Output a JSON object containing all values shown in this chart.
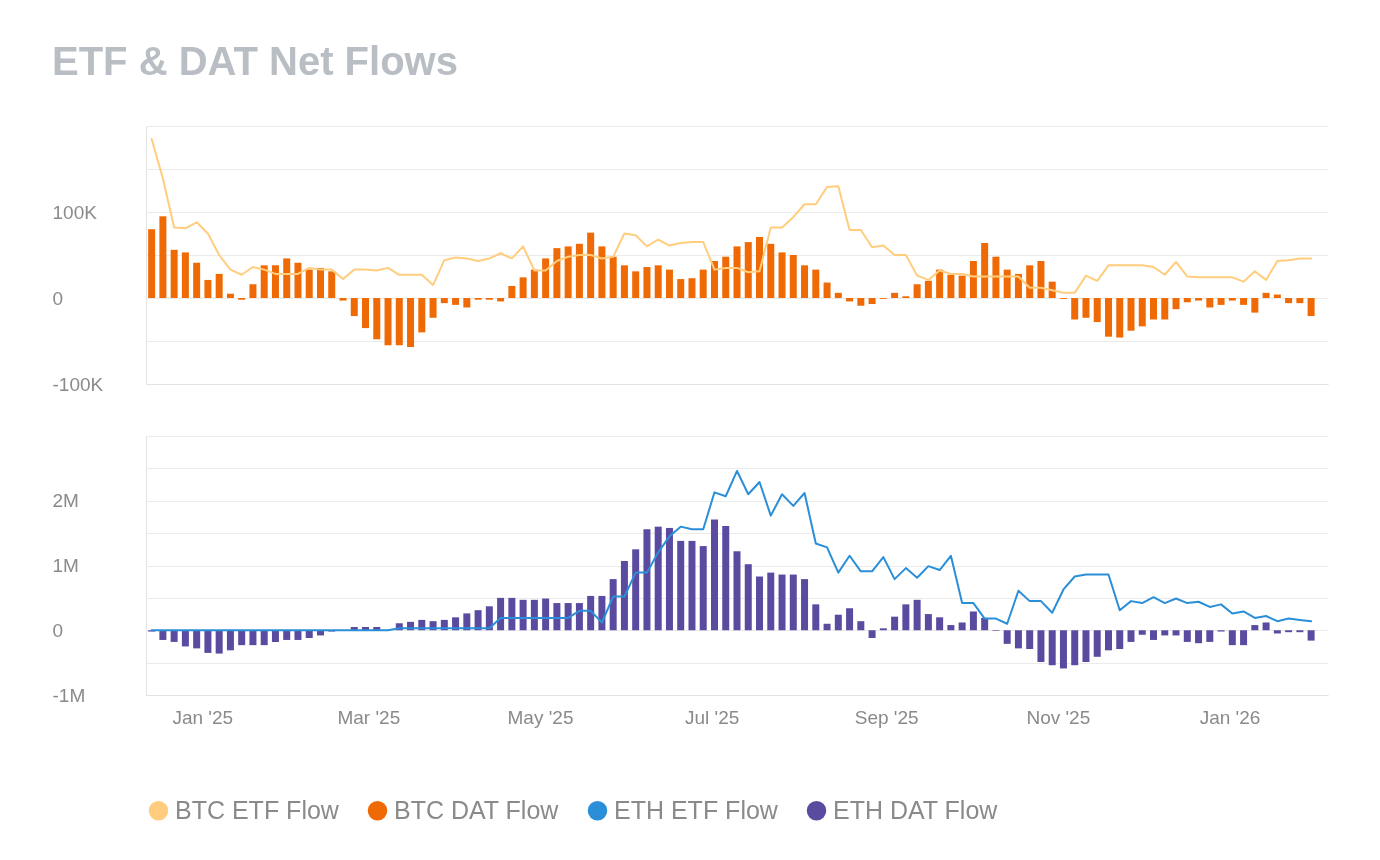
{
  "chart_data": [
    {
      "type": "bar",
      "title": "ETF & DAT Net Flows",
      "x": [
        "2024-12-14",
        "2024-12-18",
        "2024-12-22",
        "2024-12-26",
        "2024-12-30",
        "2025-01-03",
        "2025-01-07",
        "2025-01-11",
        "2025-01-15",
        "2025-01-19",
        "2025-01-23",
        "2025-01-27",
        "2025-01-31",
        "2025-02-04",
        "2025-02-08",
        "2025-02-12",
        "2025-02-16",
        "2025-02-20",
        "2025-02-24",
        "2025-02-28",
        "2025-03-04",
        "2025-03-08",
        "2025-03-12",
        "2025-03-16",
        "2025-03-20",
        "2025-03-24",
        "2025-03-28",
        "2025-04-01",
        "2025-04-05",
        "2025-04-09",
        "2025-04-13",
        "2025-04-17",
        "2025-04-21",
        "2025-04-25",
        "2025-04-29",
        "2025-05-03",
        "2025-05-07",
        "2025-05-11",
        "2025-05-15",
        "2025-05-19",
        "2025-05-23",
        "2025-05-27",
        "2025-05-31",
        "2025-06-04",
        "2025-06-08",
        "2025-06-12",
        "2025-06-16",
        "2025-06-20",
        "2025-06-24",
        "2025-06-28",
        "2025-07-02",
        "2025-07-06",
        "2025-07-10",
        "2025-07-14",
        "2025-07-18",
        "2025-07-22",
        "2025-07-26",
        "2025-07-30",
        "2025-08-03",
        "2025-08-07",
        "2025-08-11",
        "2025-08-15",
        "2025-08-19",
        "2025-08-23",
        "2025-08-27",
        "2025-08-31",
        "2025-09-04",
        "2025-09-08",
        "2025-09-12",
        "2025-09-16",
        "2025-09-20",
        "2025-09-24",
        "2025-09-28",
        "2025-10-02",
        "2025-10-06",
        "2025-10-10",
        "2025-10-14",
        "2025-10-18",
        "2025-10-22",
        "2025-10-26",
        "2025-10-30",
        "2025-11-03",
        "2025-11-07",
        "2025-11-11",
        "2025-11-15",
        "2025-11-19",
        "2025-11-23",
        "2025-11-27",
        "2025-12-01",
        "2025-12-05",
        "2025-12-09",
        "2025-12-13",
        "2025-12-17",
        "2025-12-21",
        "2025-12-25",
        "2025-12-29",
        "2026-01-02",
        "2026-01-06",
        "2026-01-10",
        "2026-01-14",
        "2026-01-18",
        "2026-01-22",
        "2026-01-26",
        "2026-01-30"
      ],
      "series": [
        {
          "name": "BTC ETF Flow",
          "type": "line",
          "color": "#ffcd7d",
          "values": [
            185000,
            139000,
            82000,
            81000,
            88000,
            75000,
            50000,
            33000,
            27000,
            36000,
            33000,
            28000,
            28000,
            28000,
            35000,
            33000,
            33000,
            22000,
            33000,
            33000,
            32000,
            35000,
            27000,
            27000,
            27000,
            15000,
            44000,
            47000,
            46000,
            43000,
            46000,
            52000,
            46000,
            60000,
            32000,
            32000,
            43000,
            48000,
            50000,
            50000,
            46000,
            48000,
            75000,
            73000,
            60000,
            68000,
            61000,
            64000,
            65000,
            65000,
            33000,
            35000,
            35000,
            30000,
            31000,
            82000,
            82000,
            94000,
            109000,
            109000,
            129000,
            130000,
            79000,
            79000,
            59000,
            61000,
            50000,
            50000,
            26000,
            21000,
            32000,
            28000,
            28000,
            25000,
            25000,
            25000,
            25000,
            25000,
            12000,
            12000,
            9000,
            6000,
            6000,
            26000,
            20000,
            38000,
            38000,
            38000,
            38000,
            36000,
            27000,
            42000,
            25000,
            24000,
            24000,
            24000,
            24000,
            19000,
            31000,
            21000,
            43000,
            44000,
            46000,
            46000
          ]
        },
        {
          "name": "BTC DAT Flow",
          "type": "bar",
          "color": "#ef6a04",
          "values": [
            80000,
            95000,
            56000,
            53000,
            41000,
            21000,
            28000,
            5000,
            -2000,
            16000,
            38000,
            38000,
            46000,
            41000,
            33000,
            35000,
            31000,
            -3000,
            -21000,
            -35000,
            -48000,
            -55000,
            -55000,
            -57000,
            -40000,
            -23000,
            -6000,
            -8000,
            -11000,
            -2000,
            -2000,
            -4000,
            14000,
            24000,
            33000,
            46000,
            58000,
            60000,
            63000,
            76000,
            60000,
            48000,
            38000,
            31000,
            36000,
            38000,
            33000,
            22000,
            23000,
            33000,
            43000,
            48000,
            60000,
            65000,
            71000,
            63000,
            53000,
            50000,
            38000,
            33000,
            18000,
            6000,
            -4000,
            -9000,
            -7000,
            -1000,
            6000,
            2000,
            16000,
            20000,
            33000,
            27000,
            26000,
            43000,
            64000,
            48000,
            33000,
            28000,
            38000,
            43000,
            19000,
            -1000,
            -25000,
            -23000,
            -28000,
            -45000,
            -46000,
            -38000,
            -33000,
            -25000,
            -25000,
            -13000,
            -5000,
            -3000,
            -11000,
            -8000,
            -3000,
            -8000,
            -17000,
            6000,
            4000,
            -6000,
            -6000,
            -21000
          ]
        }
      ],
      "xlim": [
        "2024-12-12",
        "2026-02-05"
      ],
      "ylim": [
        -100000,
        200000
      ],
      "yticks": [
        {
          "value": -100000,
          "label": "-100K"
        },
        {
          "value": -50000,
          "label": null
        },
        0,
        {
          "value": 50000,
          "label": null
        },
        {
          "value": 100000,
          "label": "100K"
        },
        {
          "value": 150000,
          "label": null
        },
        {
          "value": 200000,
          "label": null
        }
      ],
      "grid": "y",
      "legend": "bottom",
      "tick_labels": "y"
    },
    {
      "type": "bar",
      "x": [
        "2024-12-14",
        "2024-12-18",
        "2024-12-22",
        "2024-12-26",
        "2024-12-30",
        "2025-01-03",
        "2025-01-07",
        "2025-01-11",
        "2025-01-15",
        "2025-01-19",
        "2025-01-23",
        "2025-01-27",
        "2025-01-31",
        "2025-02-04",
        "2025-02-08",
        "2025-02-12",
        "2025-02-16",
        "2025-02-20",
        "2025-02-24",
        "2025-02-28",
        "2025-03-04",
        "2025-03-08",
        "2025-03-12",
        "2025-03-16",
        "2025-03-20",
        "2025-03-24",
        "2025-03-28",
        "2025-04-01",
        "2025-04-05",
        "2025-04-09",
        "2025-04-13",
        "2025-04-17",
        "2025-04-21",
        "2025-04-25",
        "2025-04-29",
        "2025-05-03",
        "2025-05-07",
        "2025-05-11",
        "2025-05-15",
        "2025-05-19",
        "2025-05-23",
        "2025-05-27",
        "2025-05-31",
        "2025-06-04",
        "2025-06-08",
        "2025-06-12",
        "2025-06-16",
        "2025-06-20",
        "2025-06-24",
        "2025-06-28",
        "2025-07-02",
        "2025-07-06",
        "2025-07-10",
        "2025-07-14",
        "2025-07-18",
        "2025-07-22",
        "2025-07-26",
        "2025-07-30",
        "2025-08-03",
        "2025-08-07",
        "2025-08-11",
        "2025-08-15",
        "2025-08-19",
        "2025-08-23",
        "2025-08-27",
        "2025-08-31",
        "2025-09-04",
        "2025-09-08",
        "2025-09-12",
        "2025-09-16",
        "2025-09-20",
        "2025-09-24",
        "2025-09-28",
        "2025-10-02",
        "2025-10-06",
        "2025-10-10",
        "2025-10-14",
        "2025-10-18",
        "2025-10-22",
        "2025-10-26",
        "2025-10-30",
        "2025-11-03",
        "2025-11-07",
        "2025-11-11",
        "2025-11-15",
        "2025-11-19",
        "2025-11-23",
        "2025-11-27",
        "2025-12-01",
        "2025-12-05",
        "2025-12-09",
        "2025-12-13",
        "2025-12-17",
        "2025-12-21",
        "2025-12-25",
        "2025-12-29",
        "2026-01-02",
        "2026-01-06",
        "2026-01-10",
        "2026-01-14",
        "2026-01-18",
        "2026-01-22",
        "2026-01-26",
        "2026-01-30"
      ],
      "series": [
        {
          "name": "ETH ETF Flow",
          "type": "line",
          "color": "#2a8fd8",
          "values": [
            0,
            0,
            0,
            0,
            0,
            0,
            0,
            0,
            0,
            0,
            0,
            0,
            0,
            0,
            0,
            0,
            0,
            0,
            0,
            0,
            0,
            0,
            30000,
            30000,
            30000,
            30000,
            30000,
            30000,
            30000,
            30000,
            30000,
            190000,
            190000,
            190000,
            190000,
            190000,
            190000,
            190000,
            300000,
            300000,
            120000,
            520000,
            520000,
            890000,
            890000,
            1200000,
            1450000,
            1600000,
            1560000,
            1560000,
            2130000,
            2070000,
            2460000,
            2100000,
            2290000,
            1770000,
            2100000,
            1920000,
            2120000,
            1340000,
            1280000,
            890000,
            1150000,
            910000,
            910000,
            1130000,
            790000,
            960000,
            810000,
            990000,
            930000,
            1150000,
            420000,
            420000,
            180000,
            180000,
            100000,
            610000,
            450000,
            450000,
            270000,
            630000,
            830000,
            860000,
            860000,
            860000,
            310000,
            450000,
            420000,
            510000,
            420000,
            490000,
            420000,
            440000,
            360000,
            400000,
            260000,
            290000,
            190000,
            220000,
            140000,
            180000,
            160000,
            140000
          ]
        },
        {
          "name": "ETH DAT Flow",
          "type": "bar",
          "color": "#5b4ba0",
          "values": [
            -20000,
            -150000,
            -180000,
            -250000,
            -280000,
            -350000,
            -360000,
            -310000,
            -230000,
            -230000,
            -230000,
            -180000,
            -150000,
            -150000,
            -120000,
            -80000,
            -20000,
            null,
            50000,
            50000,
            50000,
            null,
            110000,
            130000,
            160000,
            140000,
            160000,
            200000,
            260000,
            310000,
            370000,
            500000,
            500000,
            470000,
            470000,
            490000,
            420000,
            420000,
            420000,
            530000,
            530000,
            790000,
            1070000,
            1250000,
            1560000,
            1600000,
            1580000,
            1380000,
            1380000,
            1300000,
            1710000,
            1610000,
            1220000,
            1020000,
            830000,
            890000,
            860000,
            860000,
            790000,
            400000,
            100000,
            240000,
            340000,
            140000,
            -120000,
            30000,
            210000,
            400000,
            470000,
            250000,
            200000,
            80000,
            120000,
            290000,
            190000,
            -10000,
            -210000,
            -280000,
            -290000,
            -490000,
            -540000,
            -590000,
            -540000,
            -490000,
            -410000,
            -310000,
            -290000,
            -180000,
            -70000,
            -150000,
            -80000,
            -80000,
            -180000,
            -200000,
            -180000,
            -20000,
            -230000,
            -230000,
            80000,
            120000,
            -50000,
            -30000,
            -30000,
            -160000
          ]
        }
      ],
      "xlim": [
        "2024-12-12",
        "2026-02-05"
      ],
      "xticks": [
        {
          "value": "2025-01-01",
          "label": "Jan '25"
        },
        {
          "value": "2025-03-01",
          "label": "Mar '25"
        },
        {
          "value": "2025-05-01",
          "label": "May '25"
        },
        {
          "value": "2025-07-01",
          "label": "Jul '25"
        },
        {
          "value": "2025-09-01",
          "label": "Sep '25"
        },
        {
          "value": "2025-11-01",
          "label": "Nov '25"
        },
        {
          "value": "2026-01-01",
          "label": "Jan '26"
        }
      ],
      "ylim": [
        -1000000,
        3000000
      ],
      "yticks": [
        {
          "value": -1000000,
          "label": "-1M"
        },
        {
          "value": -500000,
          "label": null
        },
        0,
        {
          "value": 500000,
          "label": null
        },
        {
          "value": 1000000,
          "label": "1M"
        },
        {
          "value": 1500000,
          "label": null
        },
        {
          "value": 2000000,
          "label": "2M"
        },
        {
          "value": 2500000,
          "label": null
        },
        {
          "value": 3000000,
          "label": null
        }
      ],
      "grid": "y",
      "legend": "bottom"
    }
  ]
}
